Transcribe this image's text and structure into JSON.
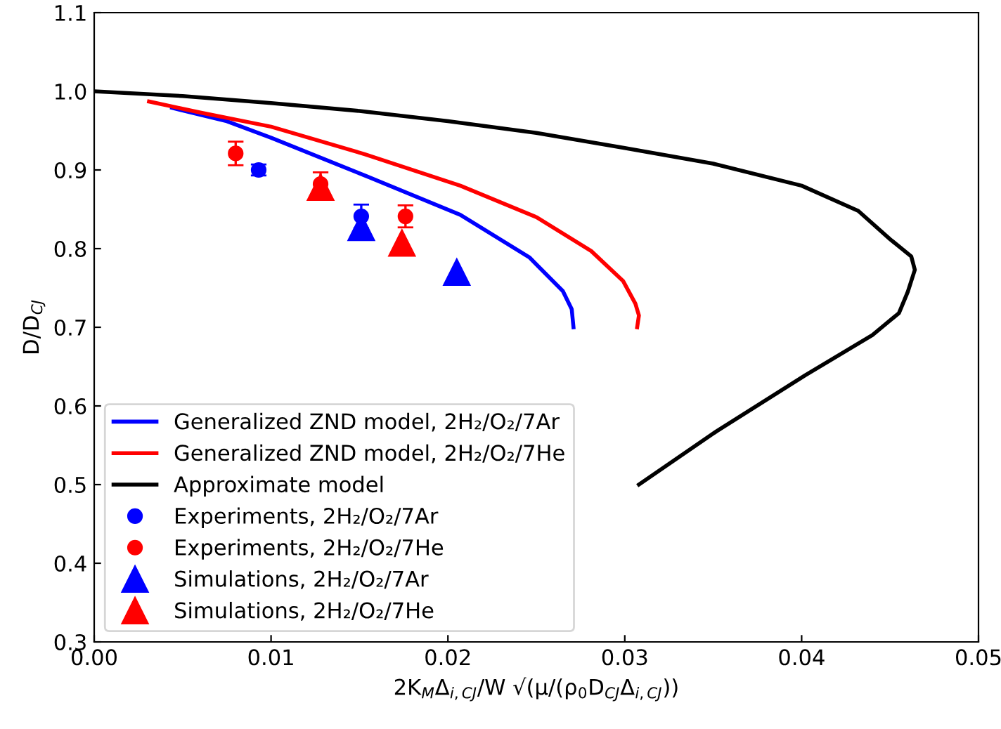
{
  "chart_data": {
    "type": "line",
    "xlabel": "2K$_{M}$Δ$_{i,CJ}$/W √(μ/(ρ$_{0}$D$_{CJ}$Δ$_{i,CJ}$))",
    "ylabel": "D/D$_{CJ}$",
    "xlim": [
      0,
      0.05
    ],
    "xticks": [
      {
        "value": 0,
        "label": "0.00"
      },
      0.01,
      0.02,
      0.03,
      0.04,
      0.05
    ],
    "ylim": [
      0.3,
      1.1
    ],
    "yticks": [
      0.3,
      0.4,
      0.5,
      0.6,
      0.7,
      0.8,
      0.9,
      {
        "value": 1.0,
        "label": "1.0"
      },
      1.1
    ],
    "grid": false,
    "legend": "bottom left",
    "series": [
      {
        "name": "Generalized ZND model, 2H₂/O₂/7Ar",
        "color": "#0000ff",
        "marker": "none",
        "x": [
          0.0044,
          0.0075,
          0.01,
          0.0153,
          0.0207,
          0.0246,
          0.0265,
          0.027,
          0.0271
        ],
        "values": [
          0.979,
          0.962,
          0.941,
          0.893,
          0.843,
          0.789,
          0.746,
          0.723,
          0.7
        ]
      },
      {
        "name": "Generalized ZND model, 2H₂/O₂/7He",
        "color": "#ff0000",
        "marker": "none",
        "x": [
          0.0031,
          0.006,
          0.01,
          0.0153,
          0.0207,
          0.025,
          0.0281,
          0.0299,
          0.0306,
          0.0308,
          0.0307
        ],
        "values": [
          0.987,
          0.973,
          0.955,
          0.92,
          0.88,
          0.84,
          0.797,
          0.759,
          0.73,
          0.715,
          0.7
        ]
      },
      {
        "name": "Approximate model",
        "color": "#000000",
        "marker": "none",
        "x": [
          0,
          0.005,
          0.01,
          0.015,
          0.02,
          0.025,
          0.03,
          0.035,
          0.04,
          0.0432,
          0.045,
          0.0462,
          0.0464,
          0.046,
          0.0455,
          0.044,
          0.0402,
          0.0352,
          0.0308
        ],
        "values": [
          1.0,
          0.994,
          0.985,
          0.975,
          0.962,
          0.947,
          0.928,
          0.908,
          0.88,
          0.848,
          0.812,
          0.79,
          0.773,
          0.745,
          0.718,
          0.69,
          0.639,
          0.568,
          0.5
        ]
      },
      {
        "type": "scatter",
        "name": "Experiments, 2H₂/O₂/7Ar",
        "color": "#0000ff",
        "marker": "circle",
        "x": [
          0.0093,
          0.0151
        ],
        "values": [
          0.9,
          0.841
        ],
        "errors": [
          0.007,
          0.015
        ]
      },
      {
        "type": "scatter",
        "name": "Experiments, 2H₂/O₂/7He",
        "color": "#ff0000",
        "marker": "circle",
        "x": [
          0.008,
          0.0128,
          0.0176
        ],
        "values": [
          0.921,
          0.882,
          0.841
        ],
        "errors": [
          0.015,
          0.015,
          0.014
        ]
      },
      {
        "type": "scatter",
        "name": "Simulations, 2H₂/O₂/7Ar",
        "color": "#0000ff",
        "marker": "triangle",
        "x": [
          0.0151,
          0.0205
        ],
        "values": [
          0.827,
          0.77
        ]
      },
      {
        "type": "scatter",
        "name": "Simulations, 2H₂/O₂/7He",
        "color": "#ff0000",
        "marker": "triangle",
        "x": [
          0.0128,
          0.0174
        ],
        "values": [
          0.878,
          0.807
        ]
      }
    ]
  }
}
